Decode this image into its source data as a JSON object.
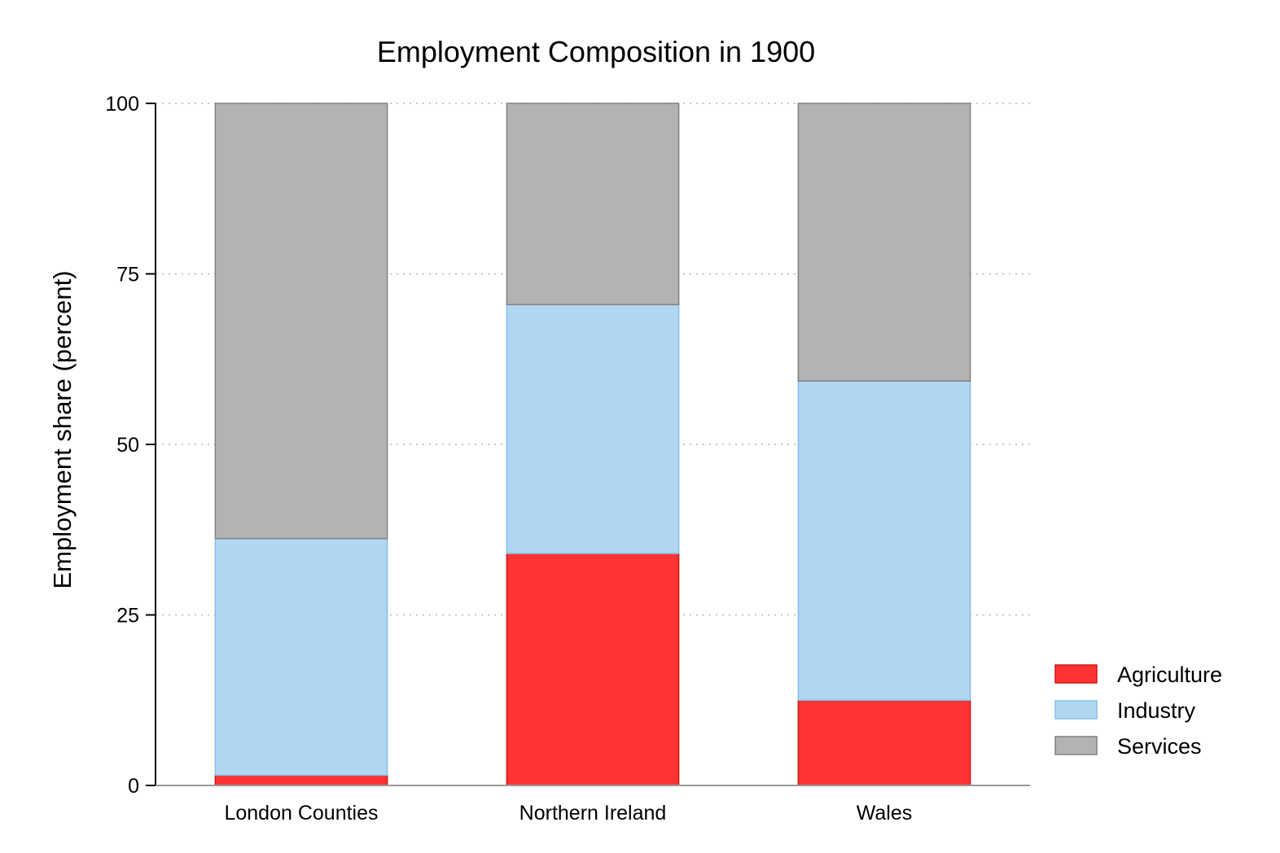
{
  "chart_data": {
    "type": "bar",
    "stacked": true,
    "title": "Employment Composition in 1900",
    "xlabel": "",
    "ylabel": "Employment share (percent)",
    "ylim": [
      0,
      100
    ],
    "yticks": [
      0,
      25,
      50,
      75,
      100
    ],
    "grid": "horizontal dotted",
    "legend_position": "right",
    "categories": [
      "London Counties",
      "Northern Ireland",
      "Wales"
    ],
    "series": [
      {
        "name": "Agriculture",
        "values": [
          1.5,
          34,
          12.5
        ],
        "color": "#ff3333",
        "edge": "#d01818"
      },
      {
        "name": "Industry",
        "values": [
          34.7,
          36.5,
          46.8
        ],
        "color": "#b0d6f1",
        "edge": "#86bfe6"
      },
      {
        "name": "Services",
        "values": [
          63.8,
          29.5,
          40.7
        ],
        "color": "#b3b3b3",
        "edge": "#808080"
      }
    ]
  }
}
